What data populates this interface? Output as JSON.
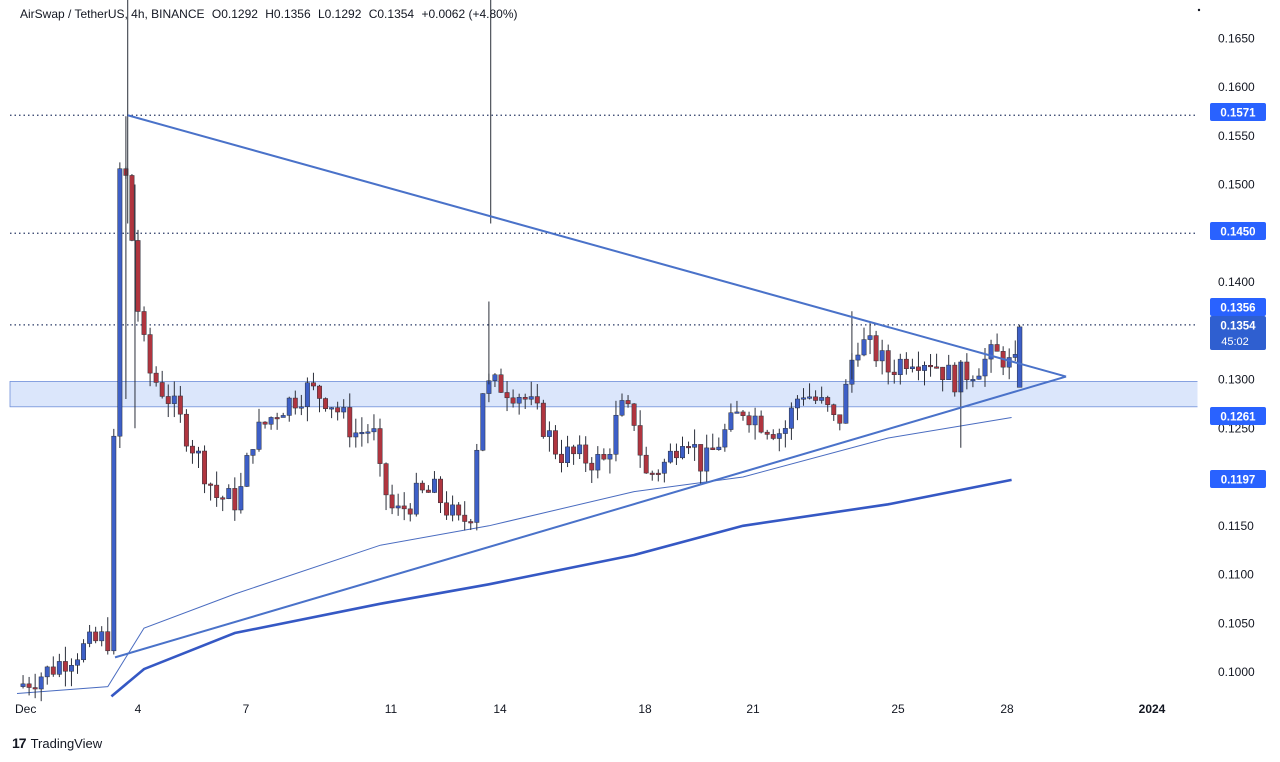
{
  "header": {
    "symbol": "AirSwap / TetherUS, 4h, BINANCE",
    "open": "O0.1292",
    "high": "H0.1356",
    "low": "L0.1292",
    "close": "C0.1354",
    "change": "+0.0062 (+4.80%)"
  },
  "brand": {
    "logo": "17",
    "name": "TradingView"
  },
  "price_tags": {
    "level_1571": "0.1571",
    "level_1450": "0.1450",
    "high": "0.1356",
    "last": "0.1354",
    "countdown": "45:02",
    "level_1261": "0.1261",
    "ma_value": "0.1197"
  },
  "colors": {
    "bull": "#3d5fc7",
    "bear": "#b0353f",
    "trendline": "#4a72c9",
    "zone_fill": "#dbe6fb",
    "tag_bg": "#2962ff",
    "grid_dots": "#2a3a66"
  },
  "chart_data": {
    "type": "candlestick",
    "title": "AirSwap / TetherUS, 4h, BINANCE",
    "x_ticks": [
      "Dec",
      "4",
      "7",
      "11",
      "14",
      "18",
      "21",
      "25",
      "28",
      "2024"
    ],
    "y_ticks": [
      "0.1000",
      "0.1050",
      "0.1100",
      "0.1150",
      "0.1250",
      "0.1300",
      "0.1400",
      "0.1500",
      "0.1550",
      "0.1600",
      "0.1650"
    ],
    "ylim": [
      0.0975,
      0.169
    ],
    "last_candle": {
      "open": 0.1292,
      "high": 0.1356,
      "low": 0.1292,
      "close": 0.1354
    },
    "horizontal_levels": [
      0.1571,
      0.145,
      0.1356
    ],
    "support_zone": [
      0.1272,
      0.1298
    ],
    "triangle": {
      "upper_line": [
        [
          4.05,
          0.1571
        ],
        [
          29.9,
          0.1303
        ]
      ],
      "lower_line": [
        [
          3.7,
          0.1015
        ],
        [
          29.9,
          0.1303
        ]
      ]
    },
    "moving_averages": [
      {
        "x": [
          1.0,
          3.5,
          4.5,
          7.0,
          11.0,
          14.0,
          18.0,
          21.0,
          25.0,
          28.4
        ],
        "y": [
          0.0978,
          0.0985,
          0.1045,
          0.108,
          0.113,
          0.115,
          0.1185,
          0.12,
          0.124,
          0.1261
        ]
      },
      {
        "x": [
          3.6,
          4.5,
          7.0,
          11.0,
          14.0,
          18.0,
          21.0,
          25.0,
          28.4
        ],
        "y": [
          0.0975,
          0.1003,
          0.104,
          0.107,
          0.109,
          0.112,
          0.115,
          0.1172,
          0.1197
        ]
      }
    ]
  }
}
